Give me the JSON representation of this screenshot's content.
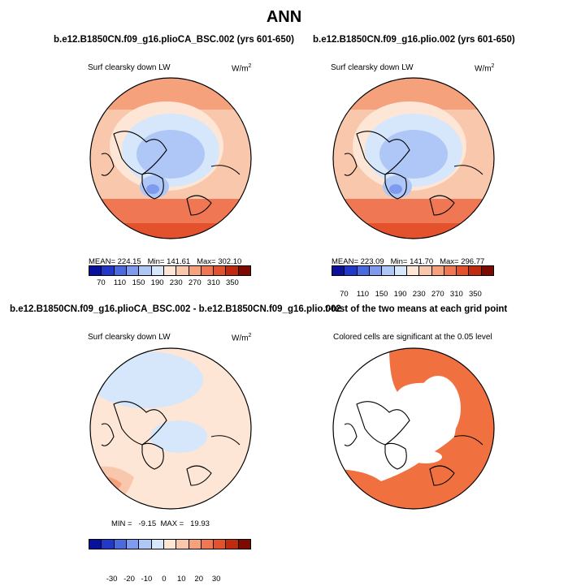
{
  "title": "ANN",
  "panels": [
    {
      "title": "b.e12.B1850CN.f09_g16.plioCA_BSC.002 (yrs 601-650)",
      "variable": "Surf clearsky down LW",
      "units": "W/m",
      "units_sup": "2",
      "stats": "MEAN= 224.15   Min= 141.61   Max= 302.10",
      "colorbar_ticks": [
        "70",
        "110",
        "150",
        "190",
        "230",
        "270",
        "310",
        "350"
      ]
    },
    {
      "title": "b.e12.B1850CN.f09_g16.plio.002 (yrs 601-650)",
      "variable": "Surf clearsky down LW",
      "units": "W/m",
      "units_sup": "2",
      "stats": "MEAN= 223.09   Min= 141.70   Max= 296.77",
      "colorbar_ticks": [
        "70",
        "110",
        "150",
        "190",
        "230",
        "270",
        "310",
        "350"
      ]
    },
    {
      "title": "b.e12.B1850CN.f09_g16.plioCA_BSC.002 - b.e12.B1850CN.f09_g16.plio.002",
      "variable": "Surf clearsky down LW",
      "units": "W/m",
      "units_sup": "2",
      "stats": "MIN =   -9.15  MAX =   19.93",
      "colorbar_ticks": [
        "-30",
        "-20",
        "-10",
        "0",
        "10",
        "20",
        "30"
      ]
    },
    {
      "title": "t-test of the two means at each grid point",
      "subtitle": "Colored cells are significant at the 0.05 level"
    }
  ],
  "colors": {
    "abs_scale": [
      "#08109c",
      "#2139c8",
      "#4a6be0",
      "#7e9bef",
      "#aec7f6",
      "#d6e6fb",
      "#fde6d6",
      "#f9c8ac",
      "#f5a17c",
      "#f07753",
      "#e4512d",
      "#c02a0e",
      "#7c0a00"
    ],
    "diff_scale": [
      "#08109c",
      "#2139c8",
      "#4a6be0",
      "#7e9bef",
      "#aec7f6",
      "#d6e6fb",
      "#fde6d6",
      "#f9c8ac",
      "#f5a17c",
      "#f07753",
      "#e4512d",
      "#c02a0e",
      "#7c0a00"
    ],
    "significant": "#f07040"
  },
  "chart_data": [
    {
      "type": "heatmap",
      "projection": "north polar stereographic",
      "title": "Surf clearsky down LW",
      "mean": 224.15,
      "min": 141.61,
      "max": 302.1,
      "levels": [
        70,
        110,
        150,
        190,
        230,
        270,
        310,
        350
      ]
    },
    {
      "type": "heatmap",
      "projection": "north polar stereographic",
      "title": "Surf clearsky down LW",
      "mean": 223.09,
      "min": 141.7,
      "max": 296.77,
      "levels": [
        70,
        110,
        150,
        190,
        230,
        270,
        310,
        350
      ]
    },
    {
      "type": "heatmap",
      "projection": "north polar stereographic",
      "title": "Surf clearsky down LW",
      "min": -9.15,
      "max": 19.93,
      "levels": [
        -30,
        -20,
        -10,
        0,
        10,
        20,
        30
      ]
    },
    {
      "type": "heatmap",
      "projection": "north polar stereographic",
      "title": "Colored cells are significant at the 0.05 level"
    }
  ]
}
